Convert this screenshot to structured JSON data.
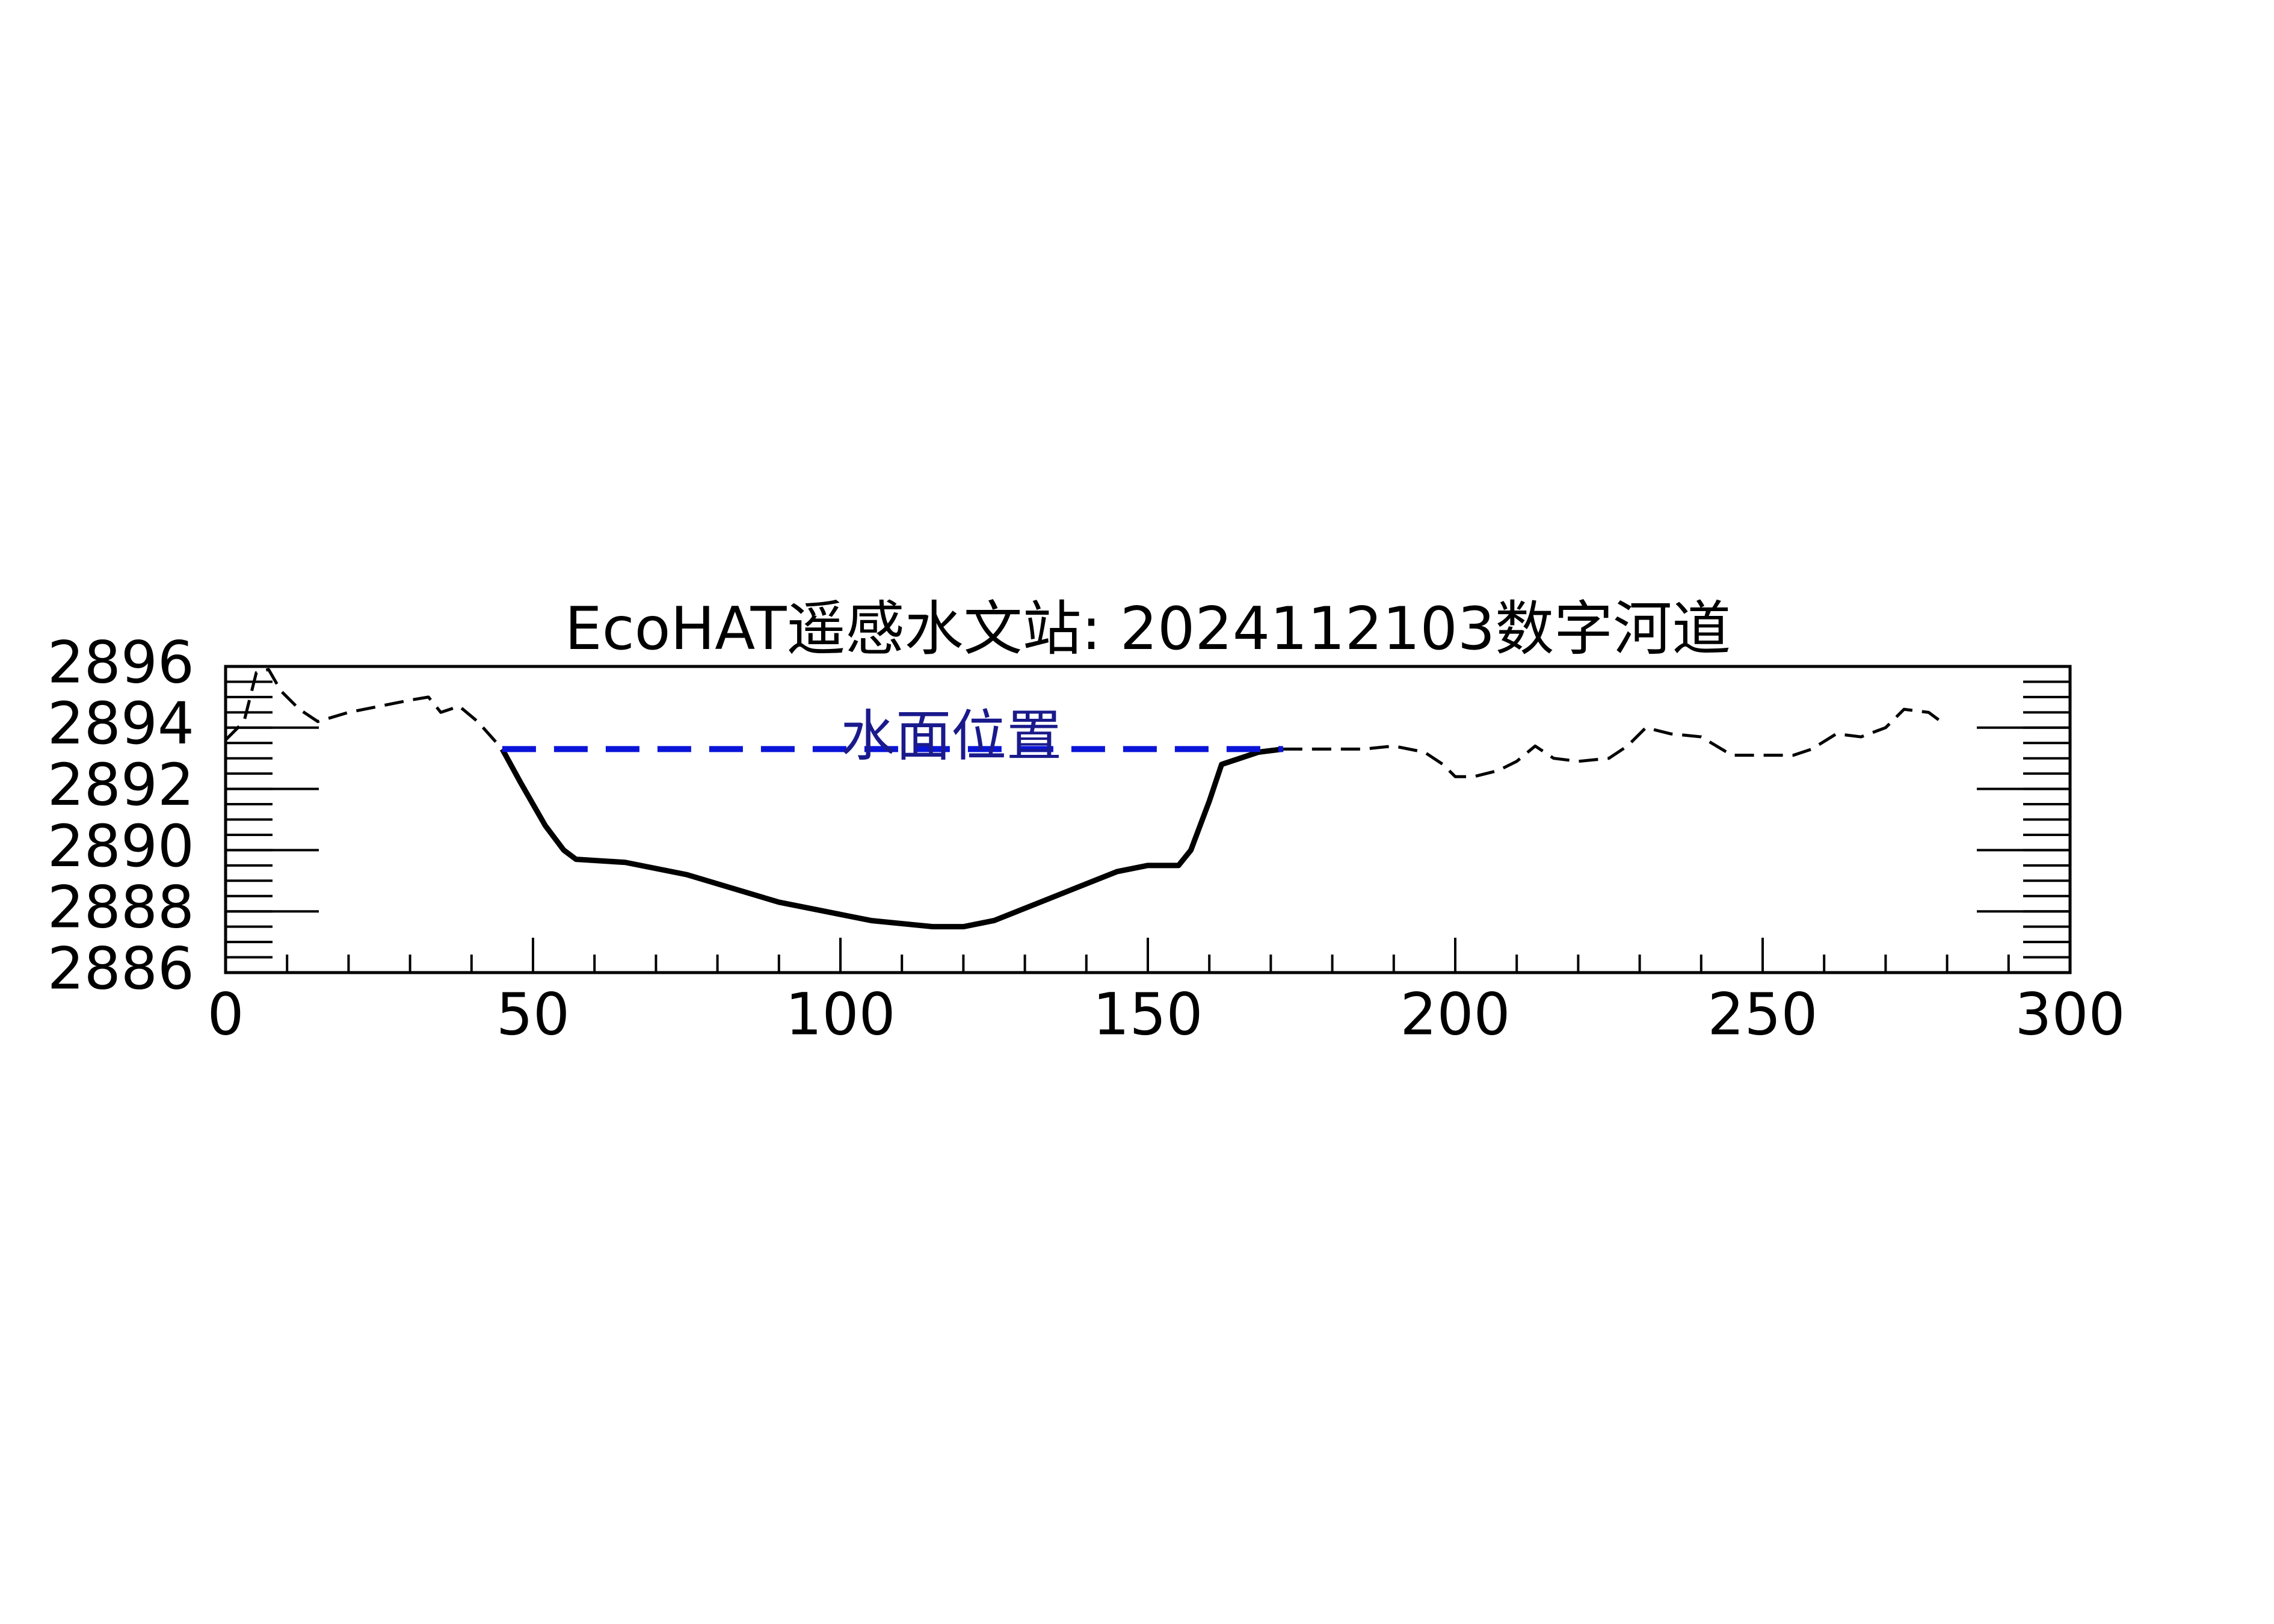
{
  "chart_data": {
    "type": "line",
    "title": "EcoHAT遥感水文站: 2024112103数字河道",
    "xlim": [
      0,
      300
    ],
    "xticks": [
      0,
      50,
      100,
      150,
      200,
      250,
      300
    ],
    "xminor_step": 10,
    "ylim": [
      2886,
      2896
    ],
    "yticks": [
      2886,
      2888,
      2890,
      2892,
      2894,
      2896
    ],
    "yminor_step": 0.5,
    "series": [
      {
        "color": "#000000",
        "style": "dashed",
        "x": [
          0,
          3,
          5,
          7,
          9,
          12,
          15,
          20,
          25,
          30,
          33,
          35,
          38,
          41,
          45
        ],
        "values": [
          2893.6,
          2894.2,
          2895.8,
          2895.9,
          2895.2,
          2894.6,
          2894.2,
          2894.5,
          2894.7,
          2894.9,
          2895.0,
          2894.5,
          2894.7,
          2894.2,
          2893.3
        ]
      },
      {
        "color": "#000000",
        "style": "solid",
        "x": [
          45,
          48,
          52,
          55,
          57,
          65,
          75,
          90,
          105,
          115,
          120,
          125,
          135,
          145,
          150,
          155,
          157,
          160,
          162,
          165,
          168,
          172
        ],
        "values": [
          2893.3,
          2892.2,
          2890.8,
          2890.0,
          2889.7,
          2889.6,
          2889.2,
          2888.3,
          2887.7,
          2887.5,
          2887.5,
          2887.7,
          2888.5,
          2889.3,
          2889.5,
          2889.5,
          2890.0,
          2891.6,
          2892.8,
          2893.0,
          2893.2,
          2893.3
        ]
      },
      {
        "color": "#000000",
        "style": "dashed",
        "x": [
          172,
          185,
          190,
          195,
          198,
          200,
          203,
          207,
          210,
          213,
          216,
          220,
          225,
          228,
          231,
          235,
          240,
          245,
          250,
          255,
          258,
          262,
          266,
          270,
          273,
          277,
          279
        ],
        "values": [
          2893.3,
          2893.3,
          2893.4,
          2893.2,
          2892.8,
          2892.4,
          2892.4,
          2892.6,
          2892.9,
          2893.4,
          2893.0,
          2892.9,
          2893.0,
          2893.4,
          2894.0,
          2893.8,
          2893.7,
          2893.1,
          2893.1,
          2893.1,
          2893.3,
          2893.8,
          2893.7,
          2894.0,
          2894.6,
          2894.5,
          2894.2
        ]
      },
      {
        "color": "#0a14d8",
        "style": "water",
        "x": [
          45,
          172
        ],
        "values": [
          2893.3,
          2893.3
        ]
      }
    ],
    "annotations": [
      {
        "text": "水面位置",
        "x": 118,
        "y": 2893.6,
        "color": "#1a1a8c"
      }
    ]
  }
}
